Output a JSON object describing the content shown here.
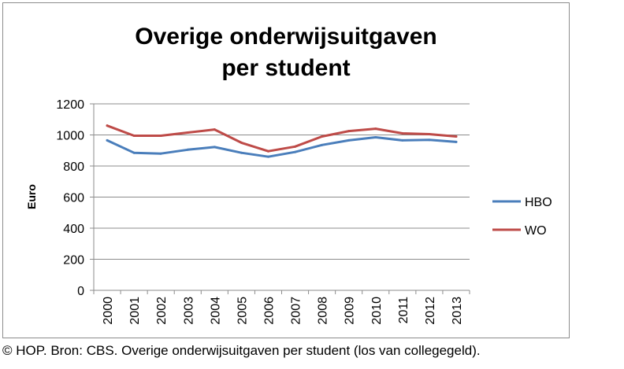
{
  "caption": "© HOP. Bron: CBS. Overige onderwijsuitgaven per student (los van collegegeld).",
  "chart_data": {
    "type": "line",
    "title": [
      "Overige onderwijsuitgaven",
      "per student"
    ],
    "xlabel": "",
    "ylabel": "Euro",
    "x": [
      "2000",
      "2001",
      "2002",
      "2003",
      "2004",
      "2005",
      "2006",
      "2007",
      "2008",
      "2009",
      "2010",
      "2011",
      "2012",
      "2013"
    ],
    "ylim": [
      0,
      1200
    ],
    "yticks": [
      0,
      200,
      400,
      600,
      800,
      1000,
      1200
    ],
    "grid": true,
    "legend_position": "right",
    "series": [
      {
        "name": "HBO",
        "color": "#4a7ebb",
        "values": [
          965,
          885,
          880,
          905,
          922,
          885,
          860,
          890,
          935,
          965,
          985,
          965,
          968,
          955
        ]
      },
      {
        "name": "WO",
        "color": "#be4b48",
        "values": [
          1060,
          995,
          995,
          1015,
          1035,
          950,
          895,
          925,
          990,
          1025,
          1040,
          1010,
          1005,
          990
        ]
      }
    ]
  }
}
